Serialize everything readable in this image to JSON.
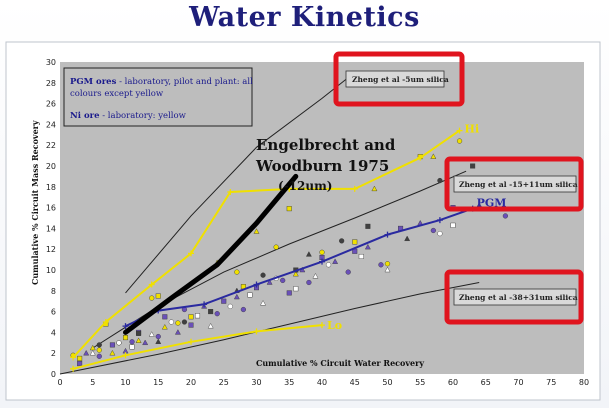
{
  "slide_title": "Water Kinetics",
  "chart_data": {
    "type": "scatter",
    "xlabel": "Cumulative % Circuit Water Recovery",
    "ylabel": "Cumulative % Circuit Mass Recovery",
    "xlim": [
      0,
      80
    ],
    "ylim": [
      0,
      30
    ],
    "xticks": [
      0,
      5,
      10,
      15,
      20,
      25,
      30,
      35,
      40,
      45,
      50,
      55,
      60,
      65,
      70,
      75,
      80
    ],
    "yticks": [
      0,
      2,
      4,
      6,
      8,
      10,
      12,
      14,
      16,
      18,
      20,
      22,
      24,
      26,
      28,
      30
    ],
    "grid": false,
    "legend": {
      "placement": "top-left",
      "lines": [
        {
          "bold": "PGM ores",
          "rest": " - laboratory, pilot and plant: all",
          "color": "#1a1a8c"
        },
        {
          "bold": "",
          "rest": "colours except yellow",
          "color": "#1a1a8c"
        },
        {
          "bold": "Ni ore",
          "rest": " - laboratory: yellow",
          "color": "#1a1a8c"
        }
      ]
    },
    "series": [
      {
        "name": "Hi",
        "kind": "line",
        "color": "#f0e000",
        "points": [
          [
            2,
            1.6
          ],
          [
            7,
            5
          ],
          [
            14,
            8.6
          ],
          [
            20,
            11.6
          ],
          [
            26,
            17.5
          ],
          [
            35,
            17.8
          ],
          [
            45,
            17.8
          ],
          [
            55,
            20.8
          ],
          [
            61,
            23.4
          ]
        ]
      },
      {
        "name": "PGM",
        "kind": "line",
        "color": "#2a2aa0",
        "points": [
          [
            10,
            4.6
          ],
          [
            15,
            6.1
          ],
          [
            22,
            6.7
          ],
          [
            30,
            8.6
          ],
          [
            40,
            10.8
          ],
          [
            50,
            13.4
          ],
          [
            58,
            14.8
          ],
          [
            63,
            15.9
          ]
        ]
      },
      {
        "name": "Lo",
        "kind": "line",
        "color": "#f0e000",
        "points": [
          [
            2,
            0.5
          ],
          [
            10,
            1.8
          ],
          [
            20,
            3.1
          ],
          [
            30,
            4.1
          ],
          [
            40,
            4.7
          ]
        ]
      }
    ],
    "trendlines": [
      {
        "label": "Zheng et al -5um silica",
        "color": "#222",
        "points": [
          [
            10,
            7.8
          ],
          [
            20,
            15.2
          ],
          [
            30,
            21.8
          ],
          [
            40,
            26.5
          ],
          [
            45,
            29
          ]
        ]
      },
      {
        "label": "Zheng et al -15+11um silica",
        "color": "#222",
        "points": [
          [
            5,
            2.5
          ],
          [
            15,
            6.5
          ],
          [
            25,
            9.8
          ],
          [
            35,
            12.5
          ],
          [
            45,
            15
          ],
          [
            55,
            17.6
          ],
          [
            62,
            19.5
          ]
        ]
      },
      {
        "label": "Zheng et al -38+31um silica",
        "color": "#222",
        "points": [
          [
            0,
            0
          ],
          [
            15,
            1.9
          ],
          [
            25,
            3.3
          ],
          [
            35,
            4.8
          ],
          [
            45,
            6.3
          ],
          [
            55,
            7.7
          ],
          [
            64,
            8.8
          ]
        ]
      }
    ],
    "engelbrecht_line": {
      "color": "#000",
      "points": [
        [
          10,
          4
        ],
        [
          17,
          7.3
        ],
        [
          24,
          10.5
        ],
        [
          30,
          14.5
        ],
        [
          36,
          19
        ]
      ]
    },
    "scatter_clouds": [
      {
        "color": "#f0e000",
        "points": [
          [
            2,
            1.8
          ],
          [
            3,
            1.5
          ],
          [
            5,
            2.5
          ],
          [
            6,
            2.3
          ],
          [
            7,
            4.8
          ],
          [
            8,
            2.0
          ],
          [
            9,
            3.0
          ],
          [
            10,
            3.5
          ],
          [
            12,
            3.2
          ],
          [
            14,
            7.3
          ],
          [
            15,
            7.5
          ],
          [
            16,
            4.5
          ],
          [
            18,
            4.9
          ],
          [
            20,
            5.5
          ],
          [
            24,
            10.7
          ],
          [
            27,
            9.8
          ],
          [
            28,
            8.4
          ],
          [
            30,
            13.7
          ],
          [
            33,
            12.2
          ],
          [
            35,
            15.9
          ],
          [
            36,
            9.6
          ],
          [
            40,
            11.7
          ],
          [
            45,
            12.7
          ],
          [
            48,
            17.8
          ],
          [
            50,
            10.6
          ],
          [
            55,
            20.9
          ],
          [
            57,
            20.9
          ],
          [
            61,
            22.4
          ]
        ]
      },
      {
        "color": "#6a50b8",
        "points": [
          [
            3,
            1.0
          ],
          [
            4,
            2.0
          ],
          [
            6,
            1.7
          ],
          [
            8,
            2.8
          ],
          [
            10,
            2.2
          ],
          [
            11,
            3.1
          ],
          [
            12,
            4.0
          ],
          [
            13,
            3.0
          ],
          [
            15,
            3.6
          ],
          [
            16,
            5.5
          ],
          [
            18,
            4.0
          ],
          [
            19,
            6.2
          ],
          [
            20,
            4.7
          ],
          [
            22,
            6.5
          ],
          [
            24,
            5.8
          ],
          [
            25,
            7.0
          ],
          [
            27,
            7.4
          ],
          [
            28,
            6.2
          ],
          [
            30,
            8.3
          ],
          [
            32,
            8.8
          ],
          [
            34,
            9.0
          ],
          [
            35,
            7.8
          ],
          [
            37,
            10.0
          ],
          [
            38,
            8.8
          ],
          [
            40,
            11.2
          ],
          [
            42,
            10.8
          ],
          [
            44,
            9.8
          ],
          [
            45,
            11.8
          ],
          [
            47,
            12.2
          ],
          [
            49,
            10.5
          ],
          [
            52,
            14.0
          ],
          [
            55,
            14.5
          ],
          [
            57,
            13.8
          ],
          [
            60,
            16.0
          ],
          [
            64,
            16.2
          ],
          [
            68,
            15.2
          ]
        ]
      },
      {
        "color": "#ffffff",
        "points": [
          [
            5,
            2.0
          ],
          [
            9,
            3.0
          ],
          [
            11,
            2.6
          ],
          [
            14,
            3.8
          ],
          [
            17,
            5.0
          ],
          [
            21,
            5.6
          ],
          [
            23,
            4.6
          ],
          [
            26,
            6.5
          ],
          [
            29,
            7.6
          ],
          [
            31,
            6.8
          ],
          [
            33,
            9.2
          ],
          [
            36,
            8.2
          ],
          [
            39,
            9.4
          ],
          [
            41,
            10.5
          ],
          [
            46,
            11.3
          ],
          [
            50,
            10.0
          ],
          [
            58,
            13.5
          ],
          [
            60,
            14.3
          ]
        ]
      },
      {
        "color": "#404040",
        "points": [
          [
            6,
            2.8
          ],
          [
            12,
            3.9
          ],
          [
            15,
            3.1
          ],
          [
            19,
            5.0
          ],
          [
            23,
            6.0
          ],
          [
            27,
            8.0
          ],
          [
            31,
            9.5
          ],
          [
            36,
            10.0
          ],
          [
            38,
            11.5
          ],
          [
            43,
            12.8
          ],
          [
            47,
            14.2
          ],
          [
            53,
            13.0
          ],
          [
            58,
            18.6
          ],
          [
            63,
            20.0
          ]
        ]
      }
    ],
    "annotations": [
      {
        "text": "Engelbrecht and",
        "role": "citation"
      },
      {
        "text": "Woodburn 1975",
        "role": "citation"
      },
      {
        "text": "(-12um)",
        "role": "citation"
      }
    ]
  }
}
